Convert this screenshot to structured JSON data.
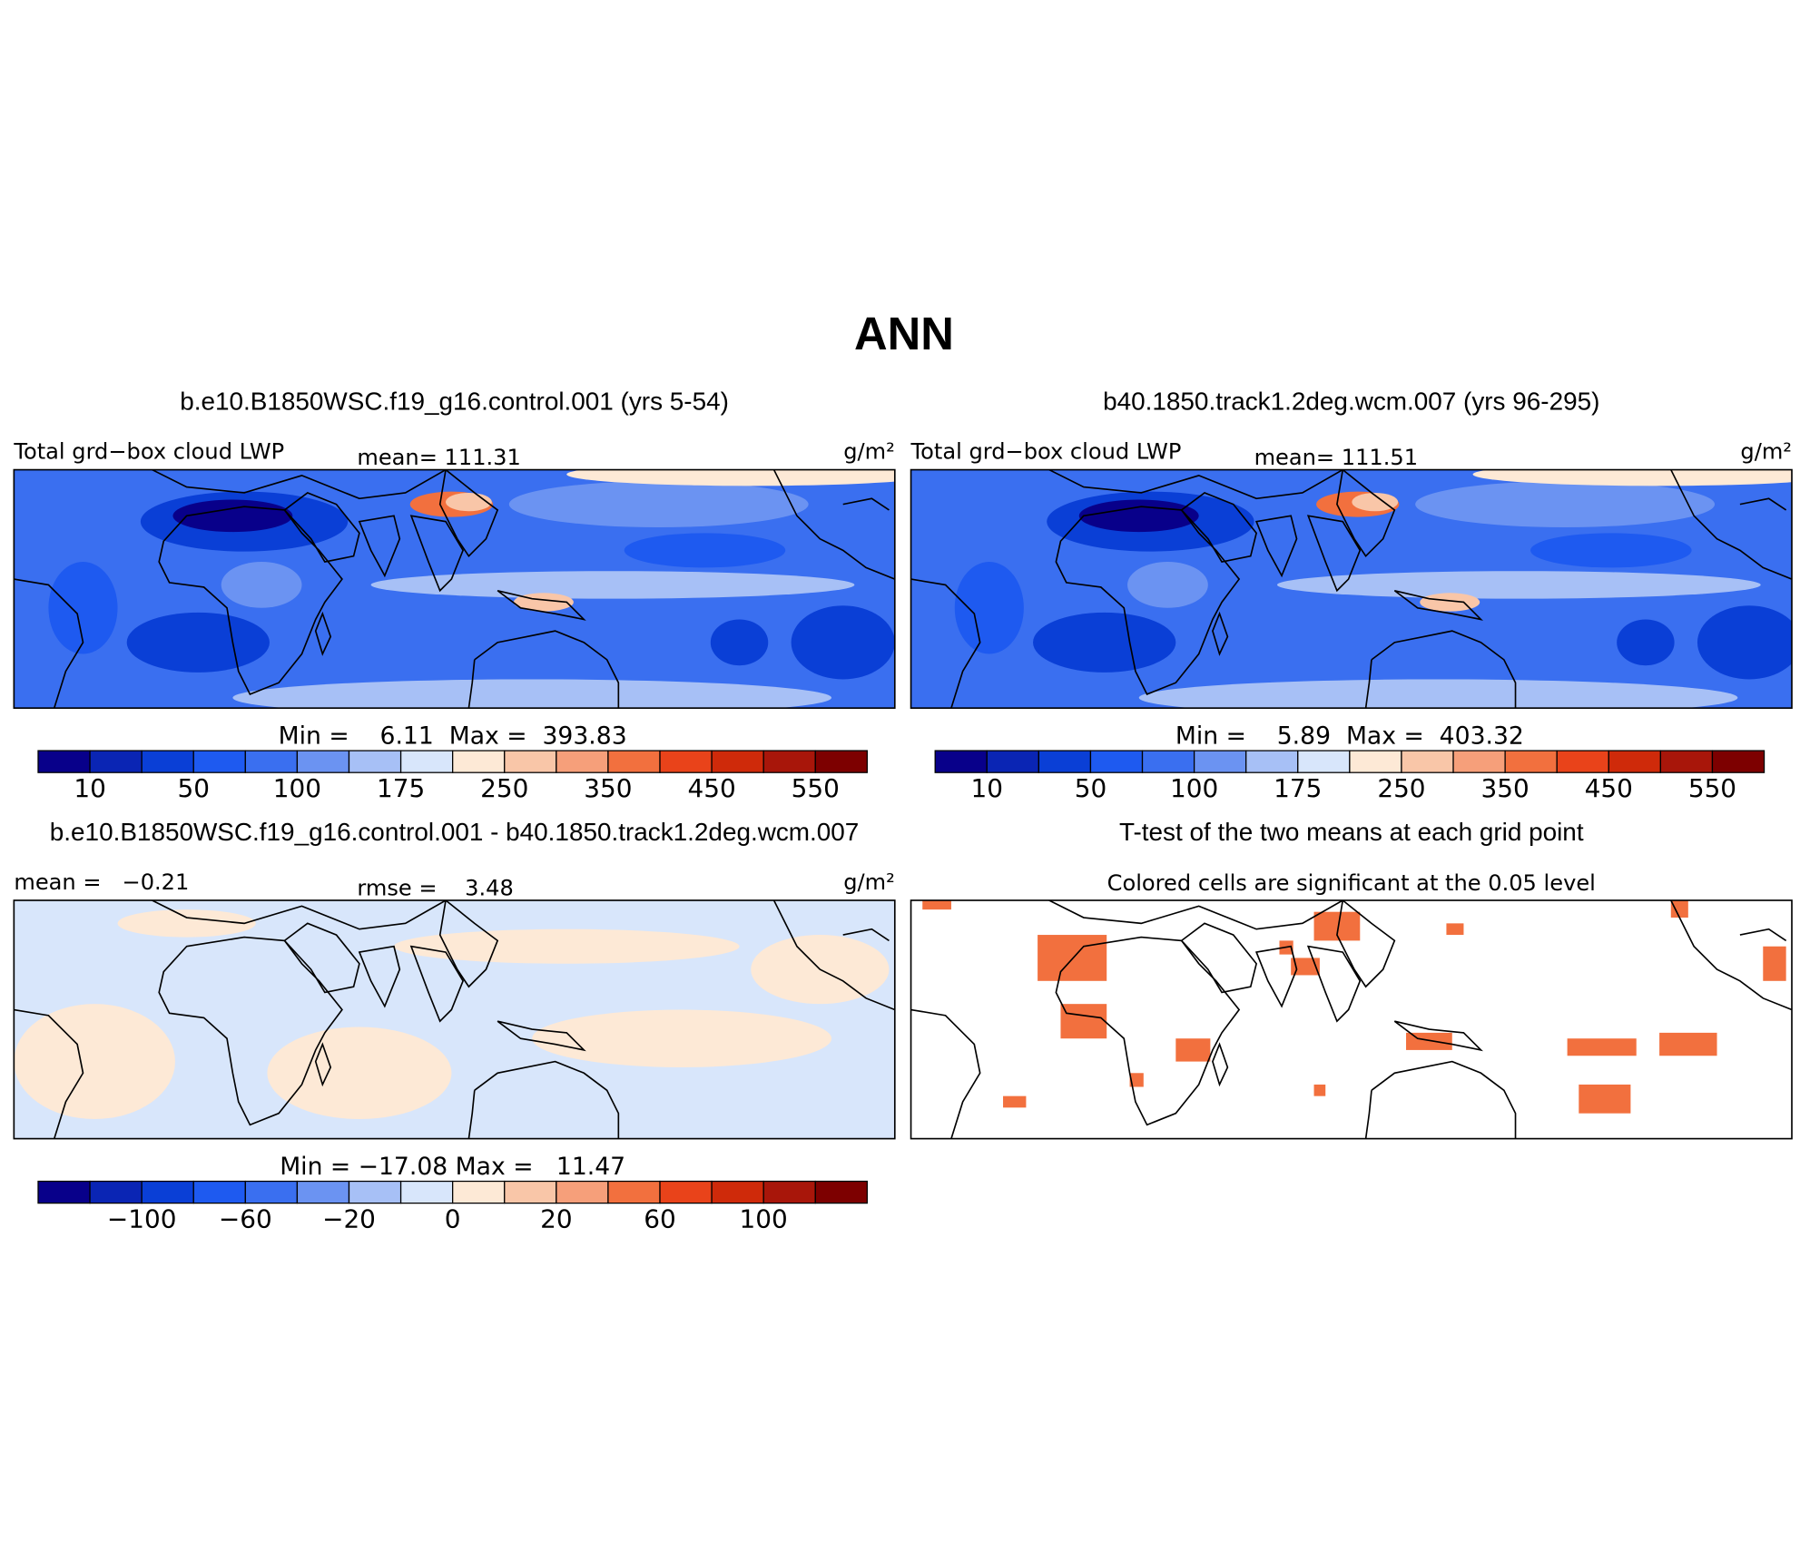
{
  "title": "ANN",
  "colorbar_colors": [
    "#08008a",
    "#0a25b4",
    "#0a3fd6",
    "#1e5af0",
    "#3a6ff0",
    "#6b93f2",
    "#a7c0f6",
    "#d8e6fb",
    "#fde9d6",
    "#f9c6a8",
    "#f69f7a",
    "#f2703e",
    "#e9431a",
    "#cf2a0a",
    "#a8160a",
    "#7d0000"
  ],
  "panels": [
    {
      "title": "b.e10.B1850WSC.f19_g16.control.001 (yrs 5-54)",
      "left_label": "Total grd−box cloud LWP",
      "center_label": "mean= 111.31",
      "units": "g/m²",
      "minmax": "Min =    6.11  Max =  393.83",
      "colorbar_labels": [
        "10",
        "50",
        "100",
        "175",
        "250",
        "350",
        "450",
        "550"
      ]
    },
    {
      "title": "b40.1850.track1.2deg.wcm.007 (yrs 96-295)",
      "left_label": "Total grd−box cloud LWP",
      "center_label": "mean= 111.51",
      "units": "g/m²",
      "minmax": "Min =    5.89  Max =  403.32",
      "colorbar_labels": [
        "10",
        "50",
        "100",
        "175",
        "250",
        "350",
        "450",
        "550"
      ]
    },
    {
      "title": "b.e10.B1850WSC.f19_g16.control.001 - b40.1850.track1.2deg.wcm.007",
      "left_label": "mean =   −0.21",
      "center_label": "rmse =    3.48",
      "units": "g/m²",
      "minmax": "Min = −17.08 Max =   11.47",
      "colorbar_labels": [
        "−100",
        "−60",
        "−20",
        "0",
        "20",
        "60",
        "100"
      ]
    },
    {
      "title": "T-test of the two means at each grid point",
      "subtitle": "Colored cells are significant at the 0.05 level"
    }
  ]
}
